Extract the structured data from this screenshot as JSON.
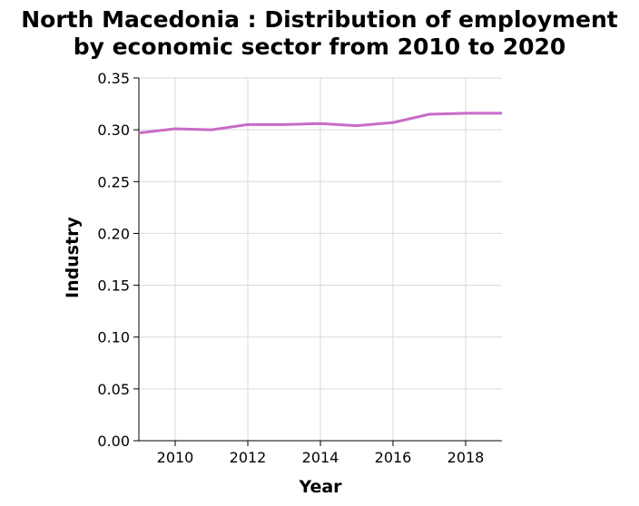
{
  "chart_data": {
    "type": "line",
    "title_lines": [
      "North Macedonia : Distribution of employment",
      "by economic sector from 2010 to 2020"
    ],
    "xlabel": "Year",
    "ylabel": "Industry",
    "xlim": [
      2009,
      2019
    ],
    "ylim": [
      0,
      0.35
    ],
    "x_ticks": [
      2010,
      2012,
      2014,
      2016,
      2018
    ],
    "x_tick_labels": [
      "2010",
      "2012",
      "2014",
      "2016",
      "2018"
    ],
    "y_ticks": [
      0,
      0.05,
      0.1,
      0.15,
      0.2,
      0.25,
      0.3,
      0.35
    ],
    "y_tick_labels": [
      "0.00",
      "0.05",
      "0.10",
      "0.15",
      "0.20",
      "0.25",
      "0.30",
      "0.35"
    ],
    "grid": true,
    "series": [
      {
        "color": "#c86bc6",
        "x": [
          2009,
          2010,
          2011,
          2012,
          2013,
          2014,
          2015,
          2016,
          2017,
          2018,
          2019
        ],
        "values": [
          0.297,
          0.301,
          0.3,
          0.305,
          0.305,
          0.306,
          0.304,
          0.307,
          0.315,
          0.316,
          0.316
        ]
      }
    ]
  }
}
